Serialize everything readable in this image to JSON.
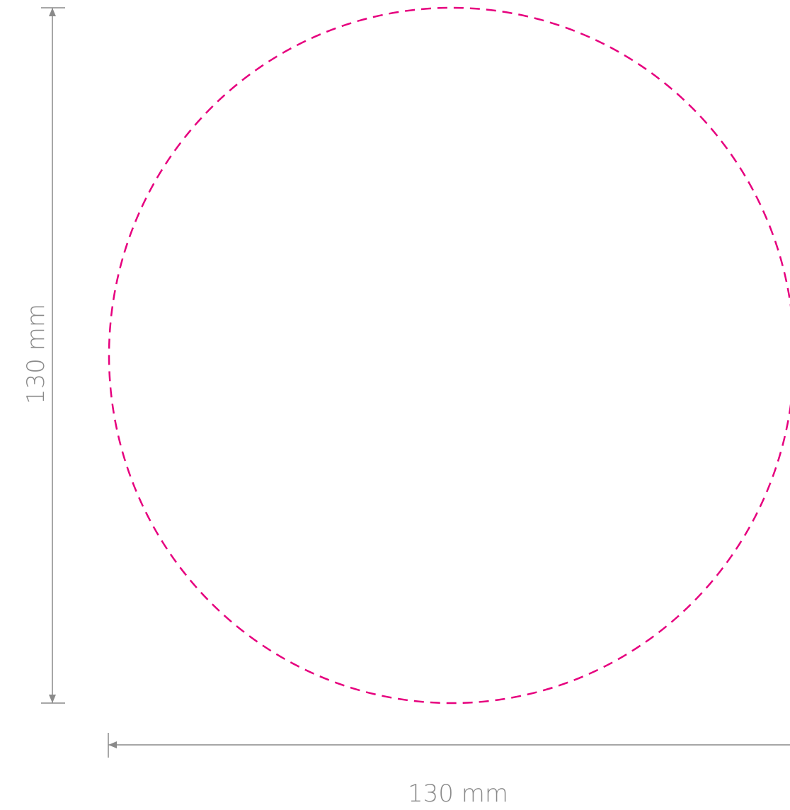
{
  "colors": {
    "cut_line": "#e6007e",
    "dimension_line": "#8a8a8a",
    "background": "#ffffff"
  },
  "dimensions": {
    "height_label": "130 mm",
    "width_label": "130 mm"
  }
}
